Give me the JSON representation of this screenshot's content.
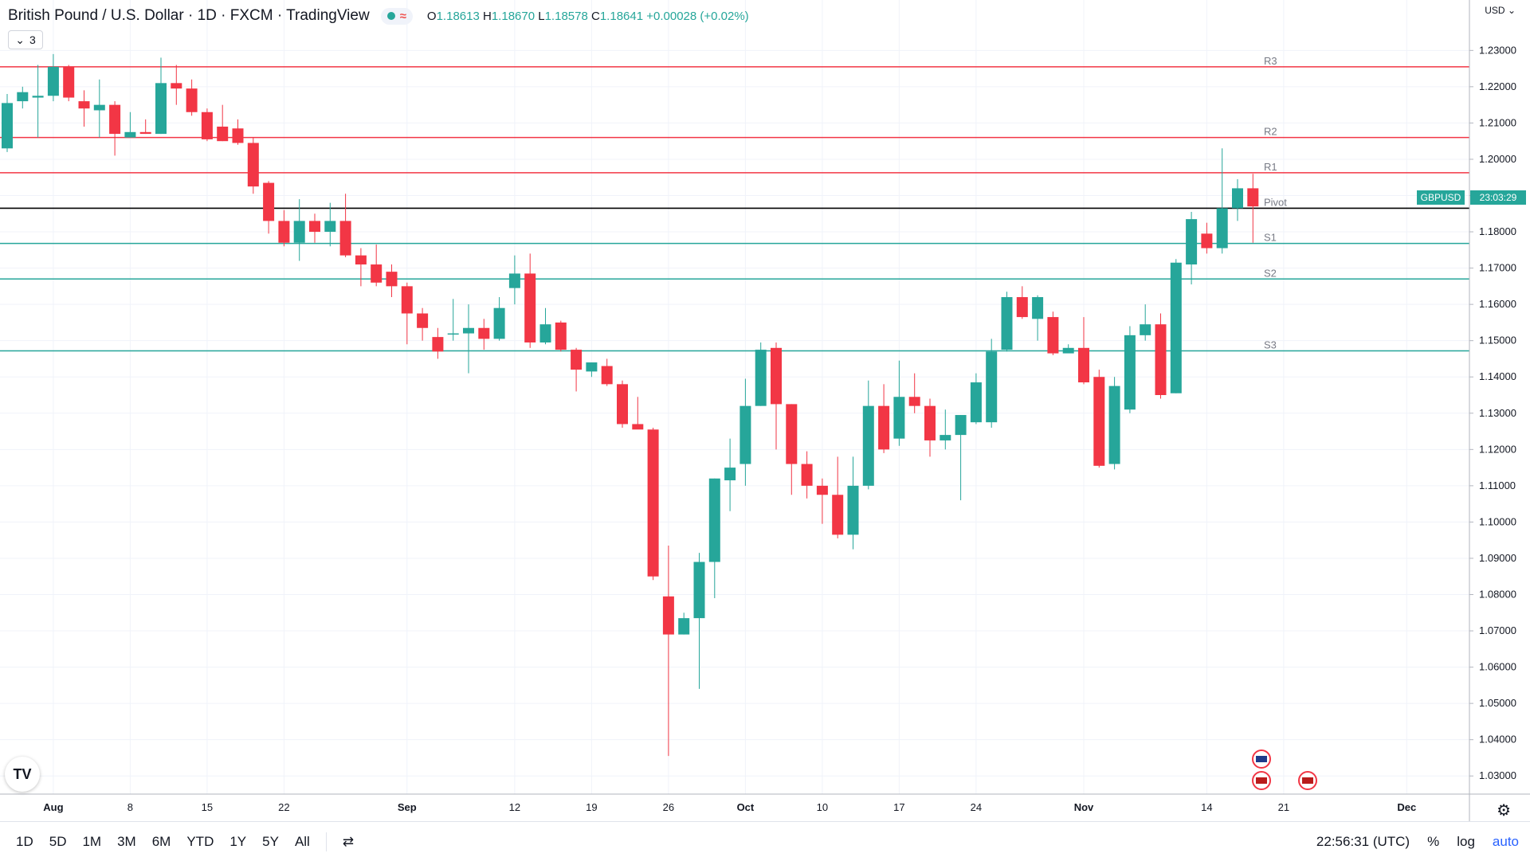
{
  "header": {
    "title": "British Pound / U.S. Dollar · 1D · FXCM · TradingView",
    "ohlc": {
      "o_label": "O",
      "o": "1.18613",
      "h_label": "H",
      "h": "1.18670",
      "l_label": "L",
      "l": "1.18578",
      "c_label": "C",
      "c": "1.18641",
      "change": "+0.00028 (+0.02%)"
    },
    "status_color": "#26a69a",
    "indicators_count": "3"
  },
  "price_axis": {
    "currency": "USD"
  },
  "last_price": {
    "symbol": "GBPUSD",
    "countdown": "23:03:29"
  },
  "bottom_bar": {
    "timeframes": [
      "1D",
      "5D",
      "1M",
      "3M",
      "6M",
      "YTD",
      "1Y",
      "5Y",
      "All"
    ],
    "clock": "22:56:31 (UTC)",
    "percent": "%",
    "log": "log",
    "auto": "auto"
  },
  "colors": {
    "up": "#26a69a",
    "down": "#f23645",
    "resistance": "#f23645",
    "support": "#26a69a",
    "pivot": "#000000"
  },
  "chart_data": {
    "type": "candlestick",
    "title": "British Pound / U.S. Dollar",
    "ylim": [
      1.025,
      1.236
    ],
    "y_ticks": [
      "1.23000",
      "1.22000",
      "1.21000",
      "1.20000",
      "1.19000",
      "1.18000",
      "1.17000",
      "1.16000",
      "1.15000",
      "1.14000",
      "1.13000",
      "1.12000",
      "1.11000",
      "1.10000",
      "1.09000",
      "1.08000",
      "1.07000",
      "1.06000",
      "1.05000",
      "1.04000",
      "1.03000"
    ],
    "x_labels": [
      {
        "label": "Aug",
        "i": 3
      },
      {
        "label": "8",
        "i": 8
      },
      {
        "label": "15",
        "i": 13
      },
      {
        "label": "22",
        "i": 18
      },
      {
        "label": "Sep",
        "i": 26
      },
      {
        "label": "12",
        "i": 33
      },
      {
        "label": "19",
        "i": 38
      },
      {
        "label": "26",
        "i": 43
      },
      {
        "label": "Oct",
        "i": 48
      },
      {
        "label": "10",
        "i": 53
      },
      {
        "label": "17",
        "i": 58
      },
      {
        "label": "24",
        "i": 63
      },
      {
        "label": "Nov",
        "i": 70
      },
      {
        "label": "14",
        "i": 78
      },
      {
        "label": "21",
        "i": 83
      },
      {
        "label": "Dec",
        "i": 91
      }
    ],
    "levels": [
      {
        "label": "R3",
        "value": 1.2255,
        "kind": "resistance"
      },
      {
        "label": "R2",
        "value": 1.206,
        "kind": "resistance"
      },
      {
        "label": "R1",
        "value": 1.1963,
        "kind": "resistance"
      },
      {
        "label": "Pivot",
        "value": 1.1865,
        "kind": "pivot"
      },
      {
        "label": "S1",
        "value": 1.1768,
        "kind": "support"
      },
      {
        "label": "S2",
        "value": 1.167,
        "kind": "support"
      },
      {
        "label": "S3",
        "value": 1.1472,
        "kind": "support"
      }
    ],
    "candles": [
      {
        "o": 1.203,
        "h": 1.218,
        "l": 1.202,
        "c": 1.2155
      },
      {
        "o": 1.216,
        "h": 1.22,
        "l": 1.214,
        "c": 1.2185
      },
      {
        "o": 1.217,
        "h": 1.226,
        "l": 1.206,
        "c": 1.2175
      },
      {
        "o": 1.2175,
        "h": 1.229,
        "l": 1.216,
        "c": 1.2255
      },
      {
        "o": 1.2255,
        "h": 1.226,
        "l": 1.216,
        "c": 1.217
      },
      {
        "o": 1.216,
        "h": 1.219,
        "l": 1.209,
        "c": 1.214
      },
      {
        "o": 1.2135,
        "h": 1.222,
        "l": 1.206,
        "c": 1.215
      },
      {
        "o": 1.215,
        "h": 1.216,
        "l": 1.201,
        "c": 1.207
      },
      {
        "o": 1.206,
        "h": 1.213,
        "l": 1.206,
        "c": 1.2075
      },
      {
        "o": 1.2075,
        "h": 1.211,
        "l": 1.207,
        "c": 1.207
      },
      {
        "o": 1.207,
        "h": 1.228,
        "l": 1.207,
        "c": 1.221
      },
      {
        "o": 1.221,
        "h": 1.226,
        "l": 1.215,
        "c": 1.2195
      },
      {
        "o": 1.2195,
        "h": 1.222,
        "l": 1.212,
        "c": 1.213
      },
      {
        "o": 1.213,
        "h": 1.214,
        "l": 1.205,
        "c": 1.2055
      },
      {
        "o": 1.209,
        "h": 1.215,
        "l": 1.205,
        "c": 1.205
      },
      {
        "o": 1.2085,
        "h": 1.211,
        "l": 1.204,
        "c": 1.2045
      },
      {
        "o": 1.2045,
        "h": 1.206,
        "l": 1.1905,
        "c": 1.1925
      },
      {
        "o": 1.1935,
        "h": 1.194,
        "l": 1.1795,
        "c": 1.183
      },
      {
        "o": 1.183,
        "h": 1.186,
        "l": 1.176,
        "c": 1.177
      },
      {
        "o": 1.177,
        "h": 1.189,
        "l": 1.172,
        "c": 1.183
      },
      {
        "o": 1.183,
        "h": 1.185,
        "l": 1.177,
        "c": 1.18
      },
      {
        "o": 1.18,
        "h": 1.188,
        "l": 1.176,
        "c": 1.183
      },
      {
        "o": 1.183,
        "h": 1.1905,
        "l": 1.173,
        "c": 1.1735
      },
      {
        "o": 1.1735,
        "h": 1.1755,
        "l": 1.165,
        "c": 1.171
      },
      {
        "o": 1.171,
        "h": 1.1765,
        "l": 1.165,
        "c": 1.166
      },
      {
        "o": 1.169,
        "h": 1.171,
        "l": 1.162,
        "c": 1.165
      },
      {
        "o": 1.165,
        "h": 1.166,
        "l": 1.149,
        "c": 1.1575
      },
      {
        "o": 1.1575,
        "h": 1.159,
        "l": 1.15,
        "c": 1.1535
      },
      {
        "o": 1.151,
        "h": 1.1535,
        "l": 1.145,
        "c": 1.147
      },
      {
        "o": 1.152,
        "h": 1.1615,
        "l": 1.15,
        "c": 1.152
      },
      {
        "o": 1.152,
        "h": 1.16,
        "l": 1.141,
        "c": 1.1535
      },
      {
        "o": 1.1535,
        "h": 1.156,
        "l": 1.1475,
        "c": 1.1505
      },
      {
        "o": 1.1505,
        "h": 1.162,
        "l": 1.15,
        "c": 1.159
      },
      {
        "o": 1.1645,
        "h": 1.1735,
        "l": 1.16,
        "c": 1.1685
      },
      {
        "o": 1.1685,
        "h": 1.174,
        "l": 1.148,
        "c": 1.1495
      },
      {
        "o": 1.1495,
        "h": 1.159,
        "l": 1.149,
        "c": 1.1545
      },
      {
        "o": 1.155,
        "h": 1.1555,
        "l": 1.147,
        "c": 1.1475
      },
      {
        "o": 1.1475,
        "h": 1.148,
        "l": 1.136,
        "c": 1.142
      },
      {
        "o": 1.1415,
        "h": 1.144,
        "l": 1.14,
        "c": 1.144
      },
      {
        "o": 1.143,
        "h": 1.145,
        "l": 1.1375,
        "c": 1.138
      },
      {
        "o": 1.138,
        "h": 1.139,
        "l": 1.126,
        "c": 1.127
      },
      {
        "o": 1.127,
        "h": 1.1345,
        "l": 1.126,
        "c": 1.1255
      },
      {
        "o": 1.1255,
        "h": 1.126,
        "l": 1.084,
        "c": 1.085
      },
      {
        "o": 1.0795,
        "h": 1.0935,
        "l": 1.0355,
        "c": 1.069
      },
      {
        "o": 1.069,
        "h": 1.075,
        "l": 1.069,
        "c": 1.0735
      },
      {
        "o": 1.0735,
        "h": 1.0915,
        "l": 1.054,
        "c": 1.089
      },
      {
        "o": 1.089,
        "h": 1.112,
        "l": 1.079,
        "c": 1.112
      },
      {
        "o": 1.1115,
        "h": 1.123,
        "l": 1.103,
        "c": 1.115
      },
      {
        "o": 1.116,
        "h": 1.1395,
        "l": 1.11,
        "c": 1.132
      },
      {
        "o": 1.132,
        "h": 1.1495,
        "l": 1.132,
        "c": 1.1475
      },
      {
        "o": 1.148,
        "h": 1.1495,
        "l": 1.12,
        "c": 1.1325
      },
      {
        "o": 1.1325,
        "h": 1.1325,
        "l": 1.1075,
        "c": 1.116
      },
      {
        "o": 1.116,
        "h": 1.1195,
        "l": 1.1065,
        "c": 1.11
      },
      {
        "o": 1.11,
        "h": 1.112,
        "l": 1.0995,
        "c": 1.1075
      },
      {
        "o": 1.1075,
        "h": 1.118,
        "l": 1.0955,
        "c": 1.0965
      },
      {
        "o": 1.0965,
        "h": 1.118,
        "l": 1.0925,
        "c": 1.11
      },
      {
        "o": 1.11,
        "h": 1.139,
        "l": 1.109,
        "c": 1.132
      },
      {
        "o": 1.132,
        "h": 1.138,
        "l": 1.119,
        "c": 1.12
      },
      {
        "o": 1.123,
        "h": 1.1445,
        "l": 1.121,
        "c": 1.1345
      },
      {
        "o": 1.1345,
        "h": 1.141,
        "l": 1.13,
        "c": 1.132
      },
      {
        "o": 1.132,
        "h": 1.134,
        "l": 1.118,
        "c": 1.1225
      },
      {
        "o": 1.1225,
        "h": 1.131,
        "l": 1.12,
        "c": 1.124
      },
      {
        "o": 1.124,
        "h": 1.1295,
        "l": 1.106,
        "c": 1.1295
      },
      {
        "o": 1.1275,
        "h": 1.141,
        "l": 1.127,
        "c": 1.1385
      },
      {
        "o": 1.1275,
        "h": 1.1505,
        "l": 1.126,
        "c": 1.147
      },
      {
        "o": 1.1475,
        "h": 1.1635,
        "l": 1.147,
        "c": 1.162
      },
      {
        "o": 1.162,
        "h": 1.165,
        "l": 1.156,
        "c": 1.1565
      },
      {
        "o": 1.156,
        "h": 1.1625,
        "l": 1.15,
        "c": 1.162
      },
      {
        "o": 1.1565,
        "h": 1.158,
        "l": 1.146,
        "c": 1.1465
      },
      {
        "o": 1.1465,
        "h": 1.149,
        "l": 1.147,
        "c": 1.148
      },
      {
        "o": 1.148,
        "h": 1.1565,
        "l": 1.138,
        "c": 1.1385
      },
      {
        "o": 1.14,
        "h": 1.142,
        "l": 1.115,
        "c": 1.1155
      },
      {
        "o": 1.116,
        "h": 1.14,
        "l": 1.1145,
        "c": 1.1375
      },
      {
        "o": 1.131,
        "h": 1.154,
        "l": 1.13,
        "c": 1.1515
      },
      {
        "o": 1.1515,
        "h": 1.16,
        "l": 1.15,
        "c": 1.1545
      },
      {
        "o": 1.1545,
        "h": 1.1575,
        "l": 1.134,
        "c": 1.135
      },
      {
        "o": 1.1355,
        "h": 1.1725,
        "l": 1.1355,
        "c": 1.1715
      },
      {
        "o": 1.171,
        "h": 1.1855,
        "l": 1.1655,
        "c": 1.1835
      },
      {
        "o": 1.1795,
        "h": 1.1825,
        "l": 1.174,
        "c": 1.1755
      },
      {
        "o": 1.1755,
        "h": 1.203,
        "l": 1.174,
        "c": 1.1865
      },
      {
        "o": 1.1865,
        "h": 1.1945,
        "l": 1.183,
        "c": 1.192
      },
      {
        "o": 1.192,
        "h": 1.196,
        "l": 1.177,
        "c": 1.187
      }
    ]
  }
}
